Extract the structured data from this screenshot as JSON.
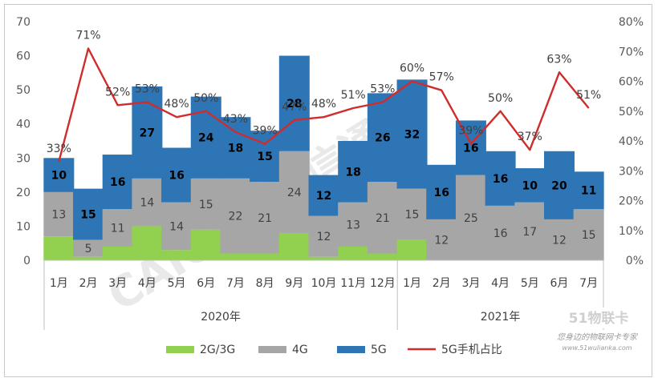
{
  "chart_data": {
    "type": "bar",
    "stacked": true,
    "categories": [
      "1月",
      "2月",
      "3月",
      "4月",
      "5月",
      "6月",
      "7月",
      "8月",
      "9月",
      "10月",
      "11月",
      "12月",
      "1月",
      "2月",
      "3月",
      "4月",
      "5月",
      "6月",
      "7月"
    ],
    "groups": [
      {
        "label": "2020年",
        "from": 0,
        "to": 11
      },
      {
        "label": "2021年",
        "from": 12,
        "to": 18
      }
    ],
    "series": [
      {
        "name": "2G/3G",
        "color": "#92d050",
        "values": [
          7,
          1,
          4,
          10,
          3,
          9,
          2,
          2,
          8,
          1,
          4,
          2,
          6,
          0,
          0,
          0,
          0,
          0,
          0
        ]
      },
      {
        "name": "4G",
        "color": "#a6a6a6",
        "values": [
          13,
          5,
          11,
          14,
          14,
          15,
          22,
          21,
          24,
          12,
          13,
          21,
          15,
          12,
          25,
          16,
          17,
          12,
          15
        ]
      },
      {
        "name": "5G",
        "color": "#2e75b6",
        "values": [
          10,
          15,
          16,
          27,
          16,
          24,
          18,
          15,
          28,
          12,
          18,
          26,
          32,
          16,
          16,
          16,
          10,
          20,
          11
        ]
      }
    ],
    "line_series": {
      "name": "5G手机占比",
      "color": "#d12b2b",
      "values": [
        33,
        71,
        52,
        53,
        48,
        50,
        43,
        39,
        47,
        48,
        51,
        53,
        60,
        57,
        39,
        50,
        37,
        63,
        51
      ]
    },
    "line_labels": [
      "33%",
      "71%",
      "52%",
      "53%",
      "48%",
      "50%",
      "43%",
      "39%",
      "47%",
      "48%",
      "51%",
      "53%",
      "60%",
      "57%",
      "39%",
      "50%",
      "37%",
      "63%",
      "51%"
    ],
    "left_axis": {
      "min": 0,
      "max": 70,
      "ticks": [
        "0",
        "10",
        "20",
        "30",
        "40",
        "50",
        "60",
        "70"
      ]
    },
    "right_axis": {
      "min": 0,
      "max": 80,
      "ticks": [
        "0%",
        "10%",
        "20%",
        "30%",
        "40%",
        "50%",
        "60%",
        "70%",
        "80%"
      ]
    },
    "grid": false,
    "legend_position": "bottom",
    "legend": [
      "2G/3G",
      "4G",
      "5G",
      "5G手机占比"
    ]
  },
  "watermark": {
    "text": "CAICT中国信通院"
  },
  "logo": {
    "brand": "51物联卡",
    "tagline": "您身边的物联网卡专家",
    "url": "www.51wulianka.com"
  }
}
